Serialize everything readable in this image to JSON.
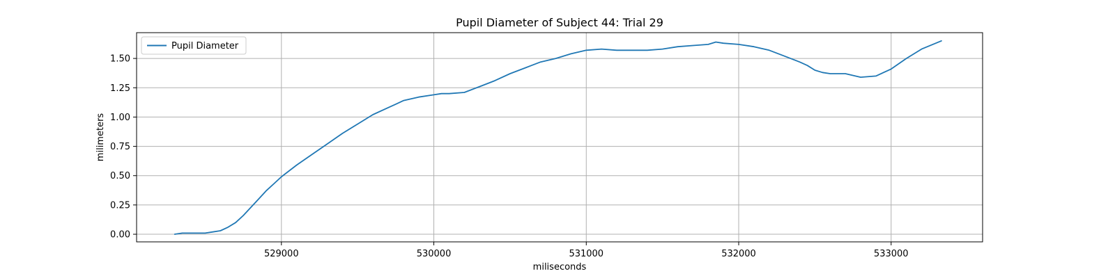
{
  "chart_data": {
    "type": "line",
    "title": "Pupil Diameter of Subject 44: Trial 29",
    "xlabel": "miliseconds",
    "ylabel": "milimeters",
    "xlim": [
      528050,
      533600
    ],
    "ylim": [
      -0.065,
      1.72
    ],
    "xticks": [
      529000,
      530000,
      531000,
      532000,
      533000
    ],
    "xtick_labels": [
      "529000",
      "530000",
      "531000",
      "532000",
      "533000"
    ],
    "yticks": [
      0.0,
      0.25,
      0.5,
      0.75,
      1.0,
      1.25,
      1.5
    ],
    "ytick_labels": [
      "0.00",
      "0.25",
      "0.50",
      "0.75",
      "1.00",
      "1.25",
      "1.50"
    ],
    "grid": true,
    "legend_position": "top-left",
    "series": [
      {
        "name": "Pupil Diameter",
        "color": "#1f77b4",
        "x": [
          528300,
          528350,
          528400,
          528450,
          528500,
          528550,
          528600,
          528650,
          528700,
          528750,
          528800,
          528850,
          528900,
          528950,
          529000,
          529100,
          529200,
          529300,
          529400,
          529500,
          529600,
          529700,
          529750,
          529800,
          529900,
          530000,
          530050,
          530100,
          530200,
          530300,
          530400,
          530500,
          530600,
          530700,
          530800,
          530900,
          531000,
          531100,
          531200,
          531300,
          531400,
          531500,
          531600,
          531700,
          531800,
          531850,
          531900,
          532000,
          532100,
          532200,
          532300,
          532400,
          532450,
          532500,
          532550,
          532600,
          532700,
          532800,
          532900,
          533000,
          533100,
          533200,
          533330
        ],
        "y": [
          0.0,
          0.01,
          0.01,
          0.01,
          0.01,
          0.02,
          0.03,
          0.06,
          0.1,
          0.16,
          0.23,
          0.3,
          0.37,
          0.43,
          0.49,
          0.59,
          0.68,
          0.77,
          0.86,
          0.94,
          1.02,
          1.08,
          1.11,
          1.14,
          1.17,
          1.19,
          1.2,
          1.2,
          1.21,
          1.26,
          1.31,
          1.37,
          1.42,
          1.47,
          1.5,
          1.54,
          1.57,
          1.58,
          1.57,
          1.57,
          1.57,
          1.58,
          1.6,
          1.61,
          1.62,
          1.64,
          1.63,
          1.62,
          1.6,
          1.57,
          1.52,
          1.47,
          1.44,
          1.4,
          1.38,
          1.37,
          1.37,
          1.34,
          1.35,
          1.41,
          1.5,
          1.58,
          1.65
        ]
      }
    ]
  }
}
